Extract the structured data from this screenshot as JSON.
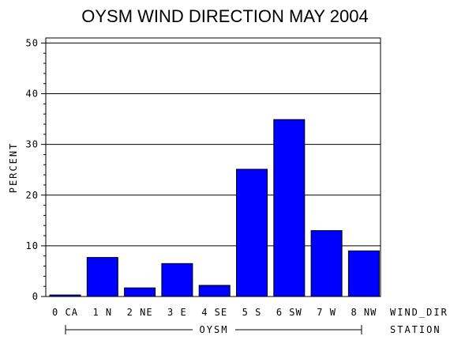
{
  "chart_data": {
    "type": "bar",
    "title": "OYSM WIND DIRECTION MAY 2004",
    "ylabel": "PERCENT",
    "xlabel": "WIND_DIR",
    "group_axis_label": "STATION",
    "group_label": "OYSM",
    "categories": [
      "0 CA",
      "1 N",
      "2 NE",
      "3 E",
      "4 SE",
      "5 S",
      "6 SW",
      "7 W",
      "8 NW"
    ],
    "values": [
      0.3,
      7.7,
      1.7,
      6.5,
      2.2,
      25.1,
      34.9,
      13.0,
      9.0
    ],
    "ylim": [
      0,
      51
    ],
    "yticks": [
      0,
      10,
      20,
      30,
      40,
      50
    ],
    "grid": true,
    "bar_color": "#0000ff"
  }
}
